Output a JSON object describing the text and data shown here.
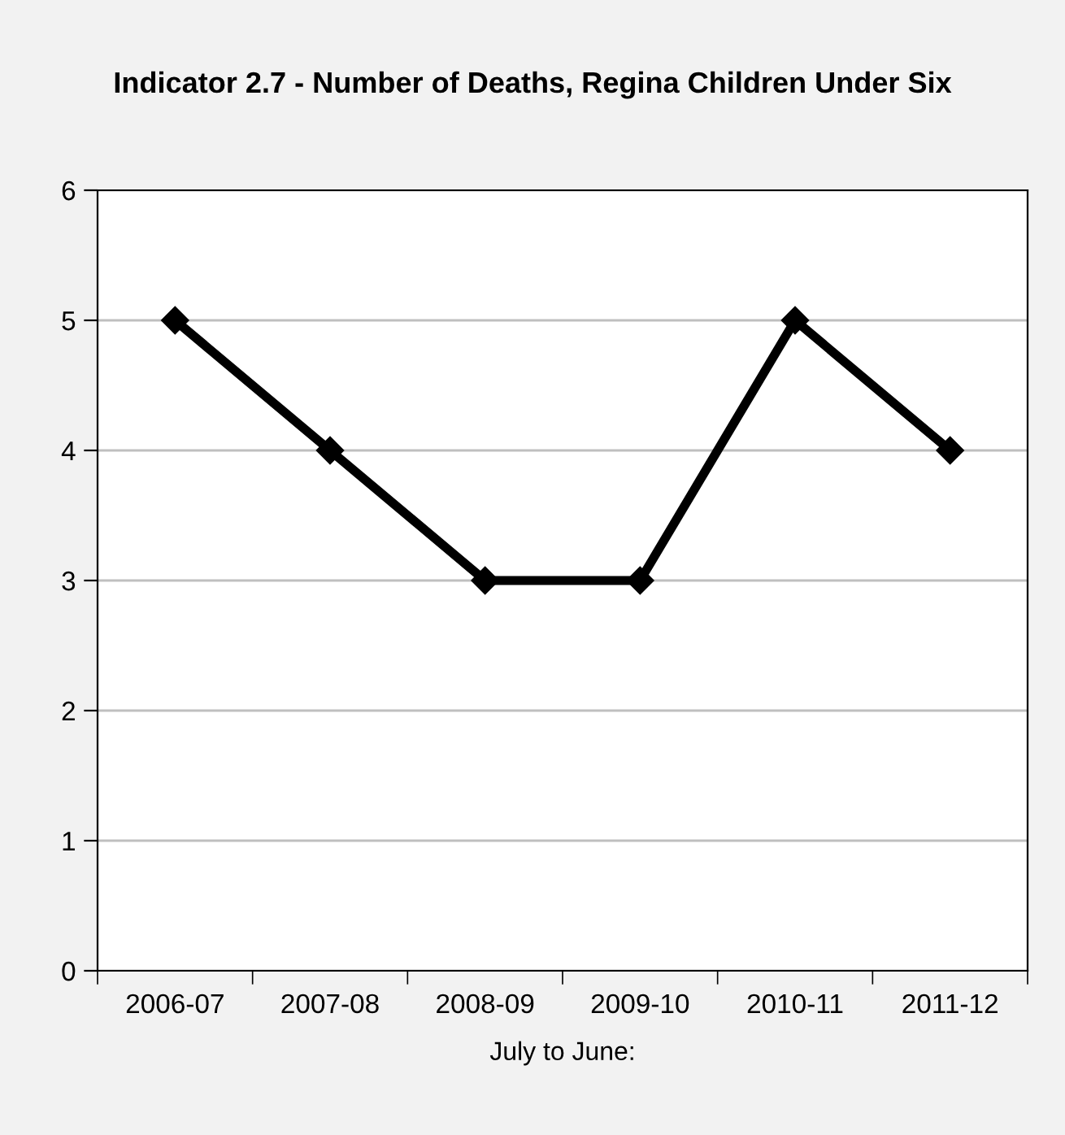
{
  "chart_data": {
    "type": "line",
    "title": "Indicator 2.7 - Number of Deaths, Regina Children Under Six",
    "xlabel": "July to June:",
    "categories": [
      "2006-07",
      "2007-08",
      "2008-09",
      "2009-10",
      "2010-11",
      "2011-12"
    ],
    "series": [
      {
        "color": "#000000",
        "values": [
          5,
          4,
          3,
          3,
          5,
          4
        ]
      }
    ],
    "ylim": [
      0,
      6
    ],
    "yticks": [
      0,
      1,
      2,
      3,
      4,
      5,
      6
    ],
    "grid": "y",
    "legend": false,
    "marker": "diamond",
    "line_style": "solid"
  }
}
